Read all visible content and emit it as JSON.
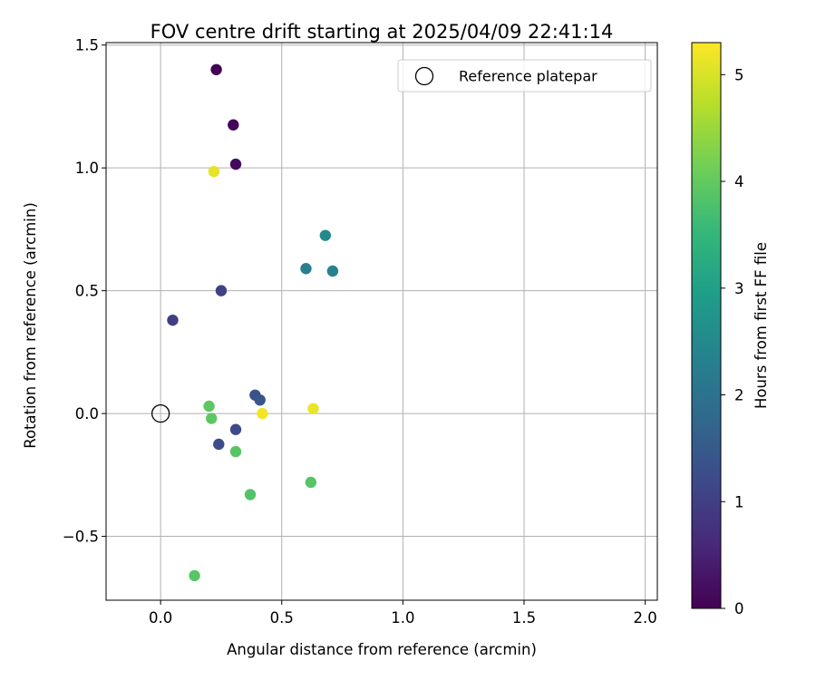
{
  "chart_data": {
    "type": "scatter",
    "title": "FOV centre drift starting at 2025/04/09 22:41:14",
    "xlabel": "Angular distance from reference (arcmin)",
    "ylabel": "Rotation from reference (arcmin)",
    "xlim": [
      -0.225,
      2.05
    ],
    "ylim": [
      -0.76,
      1.51
    ],
    "xticks": [
      0.0,
      0.5,
      1.0,
      1.5,
      2.0
    ],
    "xtick_labels": [
      "0.0",
      "0.5",
      "1.0",
      "1.5",
      "2.0"
    ],
    "yticks": [
      -0.5,
      0.0,
      0.5,
      1.0,
      1.5
    ],
    "ytick_labels": [
      "−0.5",
      "0.0",
      "0.5",
      "1.0",
      "1.5"
    ],
    "grid": true,
    "legend": {
      "placement": "top-right",
      "entries": [
        "Reference platepar"
      ]
    },
    "reference_point": {
      "x": 0.0,
      "y": 0.0
    },
    "colorbar": {
      "label": "Hours from first FF file",
      "colormap": "viridis",
      "range": [
        0,
        5.3
      ],
      "ticks": [
        0,
        1,
        2,
        3,
        4,
        5
      ],
      "tick_labels": [
        "0",
        "1",
        "2",
        "3",
        "4",
        "5"
      ]
    },
    "points": [
      {
        "x": 0.23,
        "y": 1.4,
        "hours": 0.0
      },
      {
        "x": 0.3,
        "y": 1.175,
        "hours": 0.05
      },
      {
        "x": 0.31,
        "y": 1.015,
        "hours": 0.1
      },
      {
        "x": 0.05,
        "y": 0.38,
        "hours": 1.0
      },
      {
        "x": 0.25,
        "y": 0.5,
        "hours": 1.05
      },
      {
        "x": 0.31,
        "y": -0.065,
        "hours": 1.2
      },
      {
        "x": 0.24,
        "y": -0.125,
        "hours": 1.25
      },
      {
        "x": 0.39,
        "y": 0.075,
        "hours": 1.35
      },
      {
        "x": 0.41,
        "y": 0.055,
        "hours": 1.4
      },
      {
        "x": 0.6,
        "y": 0.59,
        "hours": 2.3
      },
      {
        "x": 0.71,
        "y": 0.58,
        "hours": 2.35
      },
      {
        "x": 0.68,
        "y": 0.725,
        "hours": 2.5
      },
      {
        "x": 0.2,
        "y": 0.03,
        "hours": 3.95
      },
      {
        "x": 0.21,
        "y": -0.02,
        "hours": 3.95
      },
      {
        "x": 0.31,
        "y": -0.155,
        "hours": 3.9
      },
      {
        "x": 0.37,
        "y": -0.33,
        "hours": 3.85
      },
      {
        "x": 0.62,
        "y": -0.28,
        "hours": 3.9
      },
      {
        "x": 0.14,
        "y": -0.66,
        "hours": 3.9
      },
      {
        "x": 0.22,
        "y": 0.985,
        "hours": 5.1
      },
      {
        "x": 0.42,
        "y": 0.0,
        "hours": 5.2
      },
      {
        "x": 0.63,
        "y": 0.02,
        "hours": 5.15
      }
    ]
  }
}
